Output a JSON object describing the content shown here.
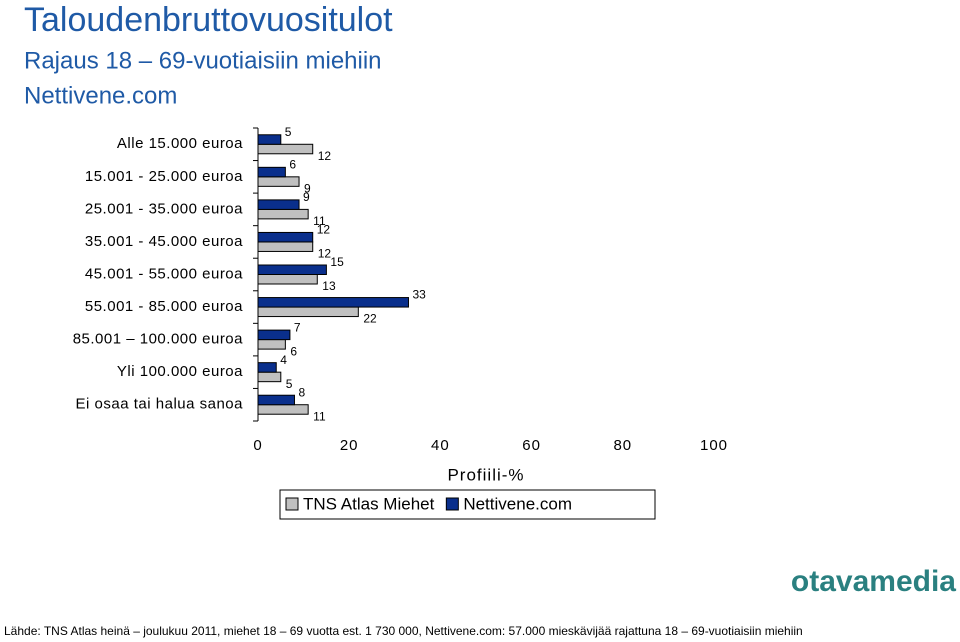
{
  "chart_data": {
    "type": "bar",
    "orientation": "horizontal",
    "title": "Taloudenbruttovuositulot",
    "subtitle": "Rajaus 18 – 69-vuotiaisiin miehiin",
    "subtitle2": "Nettivene.com",
    "categories": [
      "Alle 15.000 euroa",
      "15.001 - 25.000 euroa",
      "25.001 - 35.000 euroa",
      "35.001 - 45.000 euroa",
      "45.001 - 55.000 euroa",
      "55.001 - 85.000 euroa",
      "85.001 – 100.000 euroa",
      "Yli 100.000 euroa",
      "Ei osaa tai halua sanoa"
    ],
    "series": [
      {
        "name": "TNS Atlas Miehet",
        "color": "#c0c0c0",
        "values": [
          12,
          9,
          11,
          12,
          13,
          22,
          6,
          5,
          11
        ]
      },
      {
        "name": "Nettivene.com",
        "color": "#0a2f8c",
        "values": [
          5,
          6,
          9,
          12,
          15,
          33,
          7,
          4,
          8
        ]
      }
    ],
    "xlim": [
      0,
      100
    ],
    "xticks": [
      0,
      20,
      40,
      60,
      80,
      100
    ],
    "xlabel": "Profiili-%",
    "source": "Lähde: TNS Atlas heinä – joulukuu 2011, miehet 18 – 69 vuotta est. 1 730 000, Nettivene.com: 57.000 mieskävijää rajattuna 18 – 69-vuotiaisiin miehiin",
    "logo": "otavamedia"
  }
}
